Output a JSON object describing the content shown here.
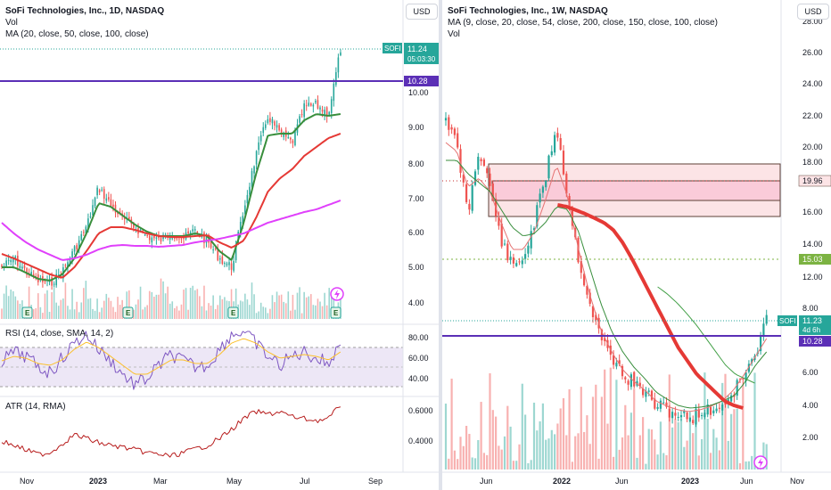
{
  "left": {
    "title": "SoFi Technologies, Inc., 1D, NASDAQ",
    "vol_label": "Vol",
    "ma_label": "MA (20, close, 50, close, 100, close)",
    "currency": "USD",
    "symbol": "SOFI",
    "last_price": "11.24",
    "countdown": "05:03:30",
    "level_label": "10.28",
    "price_ticks": [
      "10.00",
      "9.00",
      "8.00",
      "7.00",
      "6.00",
      "5.00",
      "4.00"
    ],
    "rsi_label": "RSI (14, close, SMA, 14, 2)",
    "rsi_ticks": [
      "80.00",
      "60.00",
      "40.00"
    ],
    "atr_label": "ATR (14, RMA)",
    "atr_ticks": [
      "0.6000",
      "0.4000"
    ],
    "time_ticks": [
      "Nov",
      "2023",
      "Mar",
      "May",
      "Jul",
      "Sep"
    ],
    "earnings_marker": "E"
  },
  "right": {
    "title": "SoFi Technologies, Inc., 1W, NASDAQ",
    "ma_label": "MA (9, close, 20, close, 54, close, 200, close, 150, close, 100, close)",
    "vol_label": "Vol",
    "currency": "USD",
    "symbol": "SOFI",
    "last_price": "11.23",
    "countdown": "4d 6h",
    "level_label": "10.28",
    "zone_label": "19.96",
    "support_label": "15.03",
    "price_ticks": [
      "28.00",
      "26.00",
      "24.00",
      "22.00",
      "20.00",
      "18.00",
      "16.00",
      "14.00",
      "12.00",
      "8.00",
      "6.00",
      "4.00",
      "2.00"
    ],
    "time_ticks": [
      "Jun",
      "2022",
      "Jun",
      "2023",
      "Jun",
      "Nov"
    ]
  },
  "colors": {
    "up": "#26a69a",
    "down": "#ef5350",
    "level_line": "#5b2fb6",
    "zone_fill": "#fce4e6",
    "ma_green": "#388e3c",
    "ma_red": "#e53935",
    "ma_magenta": "#e040fb",
    "rsi_line": "#7e57c2",
    "rsi_sma": "#fbc02d",
    "atr_line": "#b71c1c",
    "support_dotted": "#7cb342"
  }
}
